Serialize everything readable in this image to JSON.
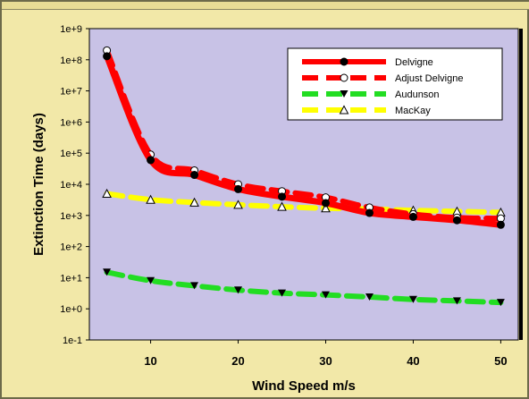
{
  "chart_data": {
    "type": "line",
    "xlabel": "Wind Speed  m/s",
    "ylabel": "Extinction Time (days)",
    "xlim": [
      3,
      52
    ],
    "ylim_log10": [
      -1,
      9
    ],
    "y_scale": "log",
    "x_ticks": [
      10,
      20,
      30,
      40,
      50
    ],
    "y_tick_labels": [
      "1e-1",
      "1e+0",
      "1e+1",
      "1e+2",
      "1e+3",
      "1e+4",
      "1e+5",
      "1e+6",
      "1e+7",
      "1e+8",
      "1e+9"
    ],
    "legend_position": "top-right",
    "grid": false,
    "plot_background": "#c8c2e6",
    "x": [
      5,
      10,
      15,
      20,
      25,
      30,
      35,
      40,
      45,
      50
    ],
    "series": [
      {
        "name": "Delvigne",
        "color": "#ff0000",
        "style": "solid",
        "marker": "filled-circle",
        "values": [
          130000000,
          60000,
          20000,
          7000,
          4000,
          2500,
          1200,
          900,
          700,
          500
        ]
      },
      {
        "name": "Adjust Delvigne",
        "color": "#ff0000",
        "style": "dashed",
        "marker": "open-circle",
        "values": [
          200000000,
          90000,
          28000,
          10000,
          6000,
          3800,
          1800,
          1100,
          850,
          800
        ]
      },
      {
        "name": "Audunson",
        "color": "#22dd22",
        "style": "dashed",
        "marker": "filled-triangle-down",
        "values": [
          15,
          8,
          5.5,
          4,
          3.2,
          2.8,
          2.4,
          2,
          1.8,
          1.6
        ]
      },
      {
        "name": "MacKay",
        "color": "#ffff00",
        "style": "dashed",
        "marker": "open-triangle-up",
        "values": [
          5000,
          3200,
          2600,
          2200,
          1900,
          1700,
          1600,
          1450,
          1350,
          1250
        ]
      }
    ]
  }
}
